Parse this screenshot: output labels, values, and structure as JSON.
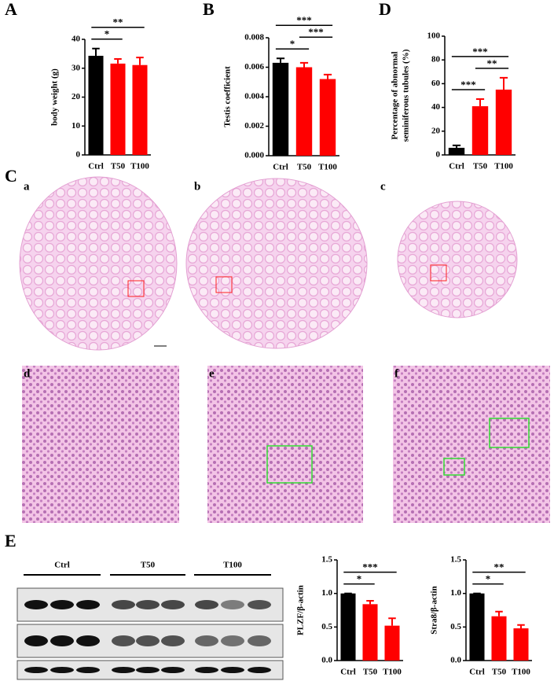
{
  "chart_data": [
    {
      "type": "bar",
      "panel": "A",
      "ylabel": "body weight (g)",
      "categories": [
        "Ctrl",
        "T50",
        "T100"
      ],
      "values": [
        34.3,
        31.6,
        31.1
      ],
      "errors": [
        2.5,
        1.6,
        2.6
      ],
      "colors": [
        "#000000",
        "#ff0000",
        "#ff0000"
      ],
      "ylim": [
        0,
        40
      ],
      "yticks": [
        0,
        10,
        20,
        30,
        40
      ],
      "significance": [
        {
          "label": "*",
          "between": [
            "Ctrl",
            "T50"
          ]
        },
        {
          "label": "**",
          "between": [
            "Ctrl",
            "T100"
          ]
        }
      ]
    },
    {
      "type": "bar",
      "panel": "B",
      "ylabel": "Testis coefficient",
      "categories": [
        "Ctrl",
        "T50",
        "T100"
      ],
      "values": [
        0.0063,
        0.006,
        0.0052
      ],
      "errors": [
        0.0003,
        0.0003,
        0.0003
      ],
      "colors": [
        "#000000",
        "#ff0000",
        "#ff0000"
      ],
      "ylim": [
        0,
        0.008
      ],
      "yticks": [
        {
          "value": 0,
          "label": "0.000"
        },
        {
          "value": 0.002,
          "label": "0.002"
        },
        {
          "value": 0.004,
          "label": "0.004"
        },
        {
          "value": 0.006,
          "label": "0.006"
        },
        {
          "value": 0.008,
          "label": "0.008"
        }
      ],
      "significance": [
        {
          "label": "*",
          "between": [
            "Ctrl",
            "T50"
          ]
        },
        {
          "label": "***",
          "between": [
            "T50",
            "T100"
          ]
        },
        {
          "label": "***",
          "between": [
            "Ctrl",
            "T100"
          ]
        }
      ]
    },
    {
      "type": "bar",
      "panel": "D",
      "ylabel": [
        "Percentage of abnormal",
        "seminiferous tubules (%)"
      ],
      "categories": [
        "Ctrl",
        "T50",
        "T100"
      ],
      "values": [
        6,
        41,
        55
      ],
      "errors": [
        2,
        6,
        10
      ],
      "colors": [
        "#000000",
        "#ff0000",
        "#ff0000"
      ],
      "ylim": [
        0,
        100
      ],
      "yticks": [
        0,
        20,
        40,
        60,
        80,
        100
      ],
      "significance": [
        {
          "label": "***",
          "between": [
            "Ctrl",
            "T50"
          ]
        },
        {
          "label": "**",
          "between": [
            "T50",
            "T100"
          ]
        },
        {
          "label": "***",
          "between": [
            "Ctrl",
            "T100"
          ]
        }
      ]
    },
    {
      "type": "bar",
      "panel": "E",
      "ylabel": "PLZF/β-actin",
      "categories": [
        "Ctrl",
        "T50",
        "T100"
      ],
      "values": [
        1.0,
        0.84,
        0.52
      ],
      "errors": [
        0,
        0.05,
        0.11
      ],
      "colors": [
        "#000000",
        "#ff0000",
        "#ff0000"
      ],
      "ylim": [
        0,
        1.5
      ],
      "yticks": [
        {
          "value": 0,
          "label": "0.0"
        },
        {
          "value": 0.5,
          "label": "0.5"
        },
        {
          "value": 1,
          "label": "1.0"
        },
        {
          "value": 1.5,
          "label": "1.5"
        }
      ],
      "significance": [
        {
          "label": "*",
          "between": [
            "Ctrl",
            "T50"
          ]
        },
        {
          "label": "***",
          "between": [
            "Ctrl",
            "T100"
          ]
        }
      ]
    },
    {
      "type": "bar",
      "ylabel": "Stra8/β-actin",
      "categories": [
        "Ctrl",
        "T50",
        "T100"
      ],
      "values": [
        1.0,
        0.66,
        0.48
      ],
      "errors": [
        0,
        0.07,
        0.05
      ],
      "colors": [
        "#000000",
        "#ff0000",
        "#ff0000"
      ],
      "ylim": [
        0,
        1.5
      ],
      "yticks": [
        {
          "value": 0,
          "label": "0.0"
        },
        {
          "value": 0.5,
          "label": "0.5"
        },
        {
          "value": 1,
          "label": "1.0"
        },
        {
          "value": 1.5,
          "label": "1.5"
        }
      ],
      "significance": [
        {
          "label": "*",
          "between": [
            "Ctrl",
            "T50"
          ]
        },
        {
          "label": "**",
          "between": [
            "Ctrl",
            "T100"
          ]
        }
      ]
    }
  ],
  "histology": {
    "panel": "C",
    "sublabels": [
      "a",
      "b",
      "c",
      "d",
      "e",
      "f"
    ]
  },
  "blot": {
    "groups": [
      "Ctrl",
      "T50",
      "T100"
    ]
  }
}
